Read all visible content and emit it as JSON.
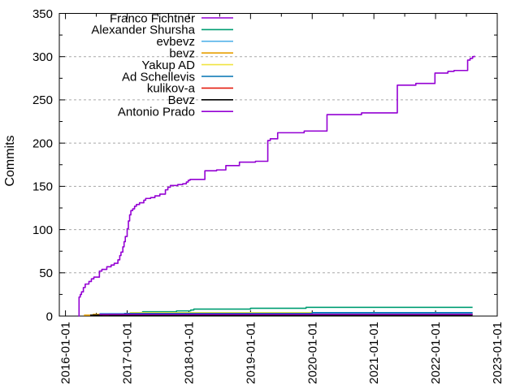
{
  "chart_data": {
    "type": "line",
    "style": "cumulative-step",
    "title": "",
    "xlabel": "",
    "ylabel": "Commits",
    "ylim": [
      0,
      350
    ],
    "xlim": [
      2015.9,
      2023.0
    ],
    "grid": "horizontal-dashed",
    "legend_position": "top-left-inside",
    "yticks": [
      0,
      50,
      100,
      150,
      200,
      250,
      300,
      350
    ],
    "ytick_minor_step": 25,
    "xticks": [
      {
        "value": 2016,
        "label": "2016-01-01"
      },
      {
        "value": 2017,
        "label": "2017-01-01"
      },
      {
        "value": 2018,
        "label": "2018-01-01"
      },
      {
        "value": 2019,
        "label": "2019-01-01"
      },
      {
        "value": 2020,
        "label": "2020-01-01"
      },
      {
        "value": 2021,
        "label": "2021-01-01"
      },
      {
        "value": 2022,
        "label": "2022-01-01"
      },
      {
        "value": 2023,
        "label": "2023-01-01"
      }
    ],
    "series": [
      {
        "name": "Franco Fichtner",
        "color": "#9400d3",
        "final_value": 301,
        "points": [
          [
            2016.21,
            0
          ],
          [
            2016.22,
            22
          ],
          [
            2016.24,
            25
          ],
          [
            2016.26,
            28
          ],
          [
            2016.29,
            33
          ],
          [
            2016.32,
            37
          ],
          [
            2016.38,
            40
          ],
          [
            2016.42,
            43
          ],
          [
            2016.46,
            45
          ],
          [
            2016.55,
            52
          ],
          [
            2016.59,
            54
          ],
          [
            2016.67,
            57
          ],
          [
            2016.74,
            59
          ],
          [
            2016.79,
            61
          ],
          [
            2016.85,
            65
          ],
          [
            2016.88,
            70
          ],
          [
            2016.9,
            74
          ],
          [
            2016.93,
            80
          ],
          [
            2016.95,
            86
          ],
          [
            2016.97,
            92
          ],
          [
            2017.0,
            101
          ],
          [
            2017.02,
            110
          ],
          [
            2017.04,
            117
          ],
          [
            2017.06,
            122
          ],
          [
            2017.09,
            124
          ],
          [
            2017.12,
            127
          ],
          [
            2017.15,
            129
          ],
          [
            2017.2,
            131
          ],
          [
            2017.27,
            134
          ],
          [
            2017.3,
            136
          ],
          [
            2017.38,
            137
          ],
          [
            2017.45,
            139
          ],
          [
            2017.53,
            141
          ],
          [
            2017.62,
            146
          ],
          [
            2017.66,
            149
          ],
          [
            2017.7,
            151
          ],
          [
            2017.82,
            152
          ],
          [
            2017.9,
            153
          ],
          [
            2017.96,
            155
          ],
          [
            2017.99,
            157
          ],
          [
            2018.02,
            158
          ],
          [
            2018.26,
            168
          ],
          [
            2018.45,
            169
          ],
          [
            2018.6,
            174
          ],
          [
            2018.82,
            178
          ],
          [
            2019.08,
            179
          ],
          [
            2019.28,
            203
          ],
          [
            2019.32,
            205
          ],
          [
            2019.44,
            212
          ],
          [
            2019.87,
            214
          ],
          [
            2020.24,
            233
          ],
          [
            2020.8,
            235
          ],
          [
            2021.38,
            267
          ],
          [
            2021.68,
            269
          ],
          [
            2021.99,
            281
          ],
          [
            2022.2,
            283
          ],
          [
            2022.3,
            284
          ],
          [
            2022.52,
            296
          ],
          [
            2022.56,
            298
          ],
          [
            2022.6,
            300
          ],
          [
            2022.63,
            301
          ]
        ]
      },
      {
        "name": "Alexander Shursha",
        "color": "#009e73",
        "final_value": 10,
        "points": [
          [
            2016.93,
            3
          ],
          [
            2017.1,
            4
          ],
          [
            2017.25,
            5
          ],
          [
            2017.8,
            6
          ],
          [
            2018.03,
            7
          ],
          [
            2018.08,
            8
          ],
          [
            2019.0,
            9
          ],
          [
            2019.9,
            10
          ],
          [
            2022.6,
            10
          ]
        ]
      },
      {
        "name": "evbevz",
        "color": "#56b4e9",
        "final_value": 3,
        "points": [
          [
            2016.5,
            2
          ],
          [
            2016.56,
            3
          ],
          [
            2022.6,
            3
          ]
        ]
      },
      {
        "name": "bevz",
        "color": "#e69f00",
        "final_value": 2,
        "points": [
          [
            2016.3,
            1
          ],
          [
            2016.45,
            2
          ],
          [
            2022.6,
            2
          ]
        ]
      },
      {
        "name": "Yakup AD",
        "color": "#f0e442",
        "final_value": 4,
        "points": [
          [
            2016.9,
            2
          ],
          [
            2017.05,
            4
          ],
          [
            2022.6,
            4
          ]
        ]
      },
      {
        "name": "Ad Schellevis",
        "color": "#0072b2",
        "final_value": 4,
        "points": [
          [
            2016.95,
            3
          ],
          [
            2020.0,
            4
          ],
          [
            2022.6,
            4
          ]
        ]
      },
      {
        "name": "kulikov-a",
        "color": "#e51e10",
        "final_value": 2,
        "points": [
          [
            2016.6,
            1
          ],
          [
            2016.7,
            2
          ],
          [
            2022.6,
            2
          ]
        ]
      },
      {
        "name": "Bevz",
        "color": "#000000",
        "final_value": 1,
        "points": [
          [
            2016.4,
            1
          ],
          [
            2022.6,
            1
          ]
        ]
      },
      {
        "name": "Antonio Prado",
        "color": "#9400d3",
        "final_value": 2,
        "points": [
          [
            2016.55,
            2
          ],
          [
            2022.6,
            2
          ]
        ]
      }
    ]
  }
}
